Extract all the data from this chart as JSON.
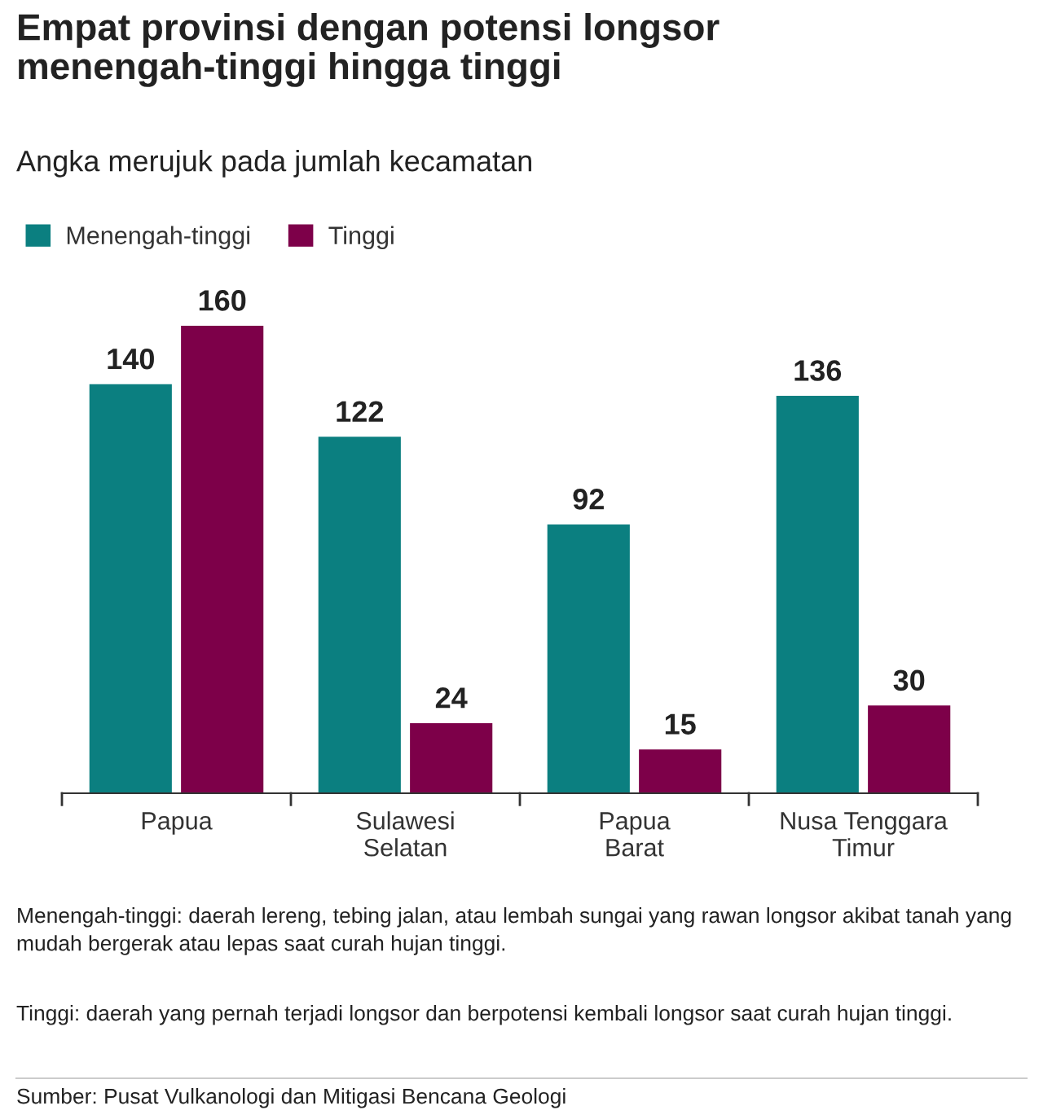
{
  "chart_data": {
    "type": "bar",
    "title": "Empat provinsi dengan potensi longsor\nmenengah-tinggi hingga tinggi",
    "subtitle": "Angka merujuk pada jumlah kecamatan",
    "categories": [
      "Papua",
      "Sulawesi\nSelatan",
      "Papua\nBarat",
      "Nusa Tenggara\nTimur"
    ],
    "series": [
      {
        "name": "Menengah-tinggi",
        "color": "#0b7f80",
        "values": [
          140,
          122,
          92,
          136
        ]
      },
      {
        "name": "Tinggi",
        "color": "#7d0049",
        "values": [
          160,
          24,
          15,
          30
        ]
      }
    ],
    "data_labels": true,
    "legend": "top left",
    "grid": false,
    "annotations": [
      "Menengah-tinggi: daerah lereng, tebing jalan, atau lembah sungai yang rawan longsor akibat tanah yang mudah bergerak atau lepas saat curah hujan tinggi.",
      "Tinggi: daerah yang pernah terjadi longsor dan berpotensi kembali longsor saat curah hujan tinggi.",
      "Sumber: Pusat Vulkanologi dan Mitigasi Bencana Geologi"
    ]
  }
}
